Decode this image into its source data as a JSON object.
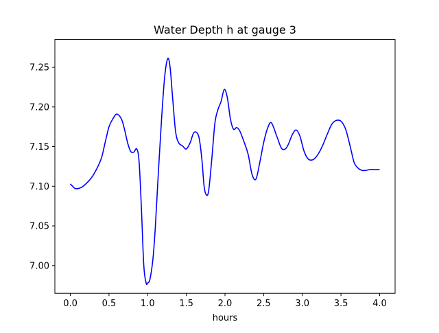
{
  "chart_data": {
    "type": "line",
    "title": "Water Depth h at gauge 3",
    "xlabel": "hours",
    "ylabel": "",
    "xlim": [
      -0.2,
      4.2
    ],
    "ylim": [
      6.965,
      7.285
    ],
    "xticks": [
      0.0,
      0.5,
      1.0,
      1.5,
      2.0,
      2.5,
      3.0,
      3.5,
      4.0
    ],
    "xtick_labels": [
      "0.0",
      "0.5",
      "1.0",
      "1.5",
      "2.0",
      "2.5",
      "3.0",
      "3.5",
      "4.0"
    ],
    "yticks": [
      7.0,
      7.05,
      7.1,
      7.15,
      7.2,
      7.25
    ],
    "ytick_labels": [
      "7.00",
      "7.05",
      "7.10",
      "7.15",
      "7.20",
      "7.25"
    ],
    "grid": false,
    "series": [
      {
        "color": "#0000ff",
        "x": [
          0.0,
          0.03,
          0.07,
          0.15,
          0.25,
          0.32,
          0.4,
          0.45,
          0.5,
          0.55,
          0.6,
          0.66,
          0.7,
          0.74,
          0.78,
          0.82,
          0.86,
          0.89,
          0.92,
          0.95,
          0.98,
          1.0,
          1.03,
          1.07,
          1.1,
          1.14,
          1.18,
          1.22,
          1.26,
          1.29,
          1.32,
          1.36,
          1.4,
          1.45,
          1.5,
          1.55,
          1.6,
          1.66,
          1.7,
          1.73,
          1.76,
          1.79,
          1.83,
          1.87,
          1.91,
          1.95,
          1.99,
          2.03,
          2.07,
          2.11,
          2.15,
          2.19,
          2.25,
          2.3,
          2.35,
          2.4,
          2.45,
          2.5,
          2.55,
          2.6,
          2.67,
          2.73,
          2.78,
          2.82,
          2.87,
          2.92,
          2.97,
          3.02,
          3.07,
          3.12,
          3.17,
          3.22,
          3.27,
          3.32,
          3.38,
          3.44,
          3.5,
          3.56,
          3.62,
          3.67,
          3.72,
          3.77,
          3.82,
          3.87,
          3.92,
          3.97,
          4.0
        ],
        "y": [
          7.103,
          7.1,
          7.097,
          7.099,
          7.108,
          7.118,
          7.135,
          7.155,
          7.175,
          7.185,
          7.191,
          7.185,
          7.172,
          7.155,
          7.144,
          7.143,
          7.147,
          7.13,
          7.07,
          7.0,
          6.978,
          6.978,
          6.983,
          7.01,
          7.05,
          7.12,
          7.185,
          7.238,
          7.261,
          7.25,
          7.215,
          7.17,
          7.155,
          7.151,
          7.147,
          7.155,
          7.168,
          7.163,
          7.135,
          7.1,
          7.089,
          7.095,
          7.135,
          7.18,
          7.197,
          7.207,
          7.222,
          7.212,
          7.185,
          7.172,
          7.174,
          7.17,
          7.155,
          7.14,
          7.115,
          7.109,
          7.13,
          7.155,
          7.173,
          7.18,
          7.163,
          7.148,
          7.147,
          7.153,
          7.165,
          7.171,
          7.163,
          7.145,
          7.135,
          7.133,
          7.136,
          7.143,
          7.153,
          7.165,
          7.178,
          7.183,
          7.182,
          7.172,
          7.15,
          7.13,
          7.123,
          7.12,
          7.12,
          7.121,
          7.121,
          7.121,
          7.121
        ]
      }
    ]
  }
}
